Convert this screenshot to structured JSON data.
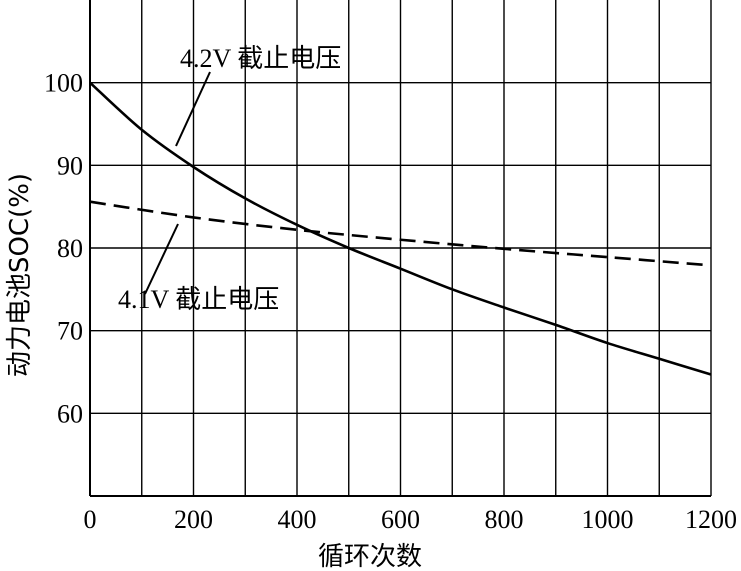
{
  "chart_data": {
    "type": "line",
    "xlabel": "循环次数",
    "ylabel": "动力电池SOC(%)",
    "xlim": [
      0,
      1200
    ],
    "ylim": [
      50,
      110
    ],
    "x_ticks": [
      "0",
      "200",
      "400",
      "600",
      "800",
      "1000",
      "1200"
    ],
    "y_ticks": [
      "60",
      "70",
      "80",
      "90",
      "100"
    ],
    "grid": true,
    "series": [
      {
        "name": "4.2V 截止电压",
        "style": "solid",
        "x": [
          0,
          100,
          200,
          300,
          400,
          500,
          600,
          700,
          800,
          900,
          1000,
          1100,
          1200
        ],
        "y": [
          100,
          94.3,
          89.8,
          86.0,
          82.8,
          80.0,
          77.5,
          75.0,
          72.8,
          70.7,
          68.5,
          66.6,
          64.7
        ]
      },
      {
        "name": "4.1V 截止电压",
        "style": "dashed",
        "x": [
          0,
          200,
          400,
          600,
          800,
          1000,
          1200
        ],
        "y": [
          85.6,
          83.7,
          82.2,
          81.0,
          79.9,
          78.9,
          77.9
        ]
      }
    ]
  }
}
